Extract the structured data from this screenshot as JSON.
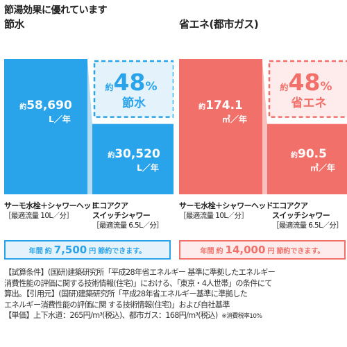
{
  "headline": "節湯効果に優れています",
  "colors": {
    "water_bar": "#29a3ea",
    "water_wedge": "#b3ddf4",
    "water_box_bg": "#e3f2fb",
    "gas_bar": "#f1706a",
    "gas_wedge": "#f8c1bd",
    "gas_box_bg": "#fdeceb"
  },
  "chart_data": [
    {
      "type": "bar",
      "title": "節水",
      "categories": [
        "サーモ水栓＋シャワーヘッド",
        "エコアクア スイッチシャワー"
      ],
      "values": [
        58690,
        30520
      ],
      "unit": "L／年",
      "bar_labels": [
        {
          "prefix": "約",
          "value": "58,690",
          "unit": "L／年"
        },
        {
          "prefix": "約",
          "value": "30,520",
          "unit": "L／年"
        }
      ],
      "reduction": {
        "prefix": "約",
        "percent": "48",
        "percent_sign": "%",
        "label": "節水"
      },
      "conditions": [
        {
          "name_lines": [
            "サーモ水栓＋シャワーヘッド"
          ],
          "flow": "［最適流量 10L／分］"
        },
        {
          "name_lines": [
            "エコアクア",
            "スイッチシャワー"
          ],
          "flow": "［最適流量 6.5L／分］"
        }
      ],
      "summary": {
        "pre": "年間",
        "prefix": "約",
        "amount": "7,500",
        "suffix": "円",
        "post": "節約できます。"
      }
    },
    {
      "type": "bar",
      "title": "省エネ(都市ガス)",
      "categories": [
        "サーモ水栓＋シャワーヘッド",
        "エコアクア スイッチシャワー"
      ],
      "values": [
        174.1,
        90.5
      ],
      "unit": "㎥／年",
      "bar_labels": [
        {
          "prefix": "約",
          "value": "174.1",
          "unit": "㎥／年"
        },
        {
          "prefix": "約",
          "value": "90.5",
          "unit": "㎥／年"
        }
      ],
      "reduction": {
        "prefix": "約",
        "percent": "48",
        "percent_sign": "%",
        "label": "省エネ"
      },
      "conditions": [
        {
          "name_lines": [
            "サーモ水栓＋シャワーヘッド"
          ],
          "flow": "［最適流量 10L／分］"
        },
        {
          "name_lines": [
            "エコアクア",
            "スイッチシャワー"
          ],
          "flow": "［最適流量 6.5L／分］"
        }
      ],
      "summary": {
        "pre": "年間",
        "prefix": "約",
        "amount": "14,000",
        "suffix": "円",
        "post": "節約できます。"
      }
    }
  ],
  "notes": [
    "【試算条件】(国研)建築研究所「平成28年省エネルギー 基準に準拠したエネルギー",
    "消費性能の評価に関する技術情報(住宅)」における、「東京・4人世帯」の条件にて",
    "算出。【引用元】(国研)建築研究所「平成28年省エネルギー基準に準拠した",
    "エネルギー消費性能の評価に関 する技術情報(住宅)」および自社基準",
    "【単価】上下水道：265円/m³(税込)、都市ガス：168円/m³(税込)"
  ],
  "footnote": "※消費税率10%"
}
